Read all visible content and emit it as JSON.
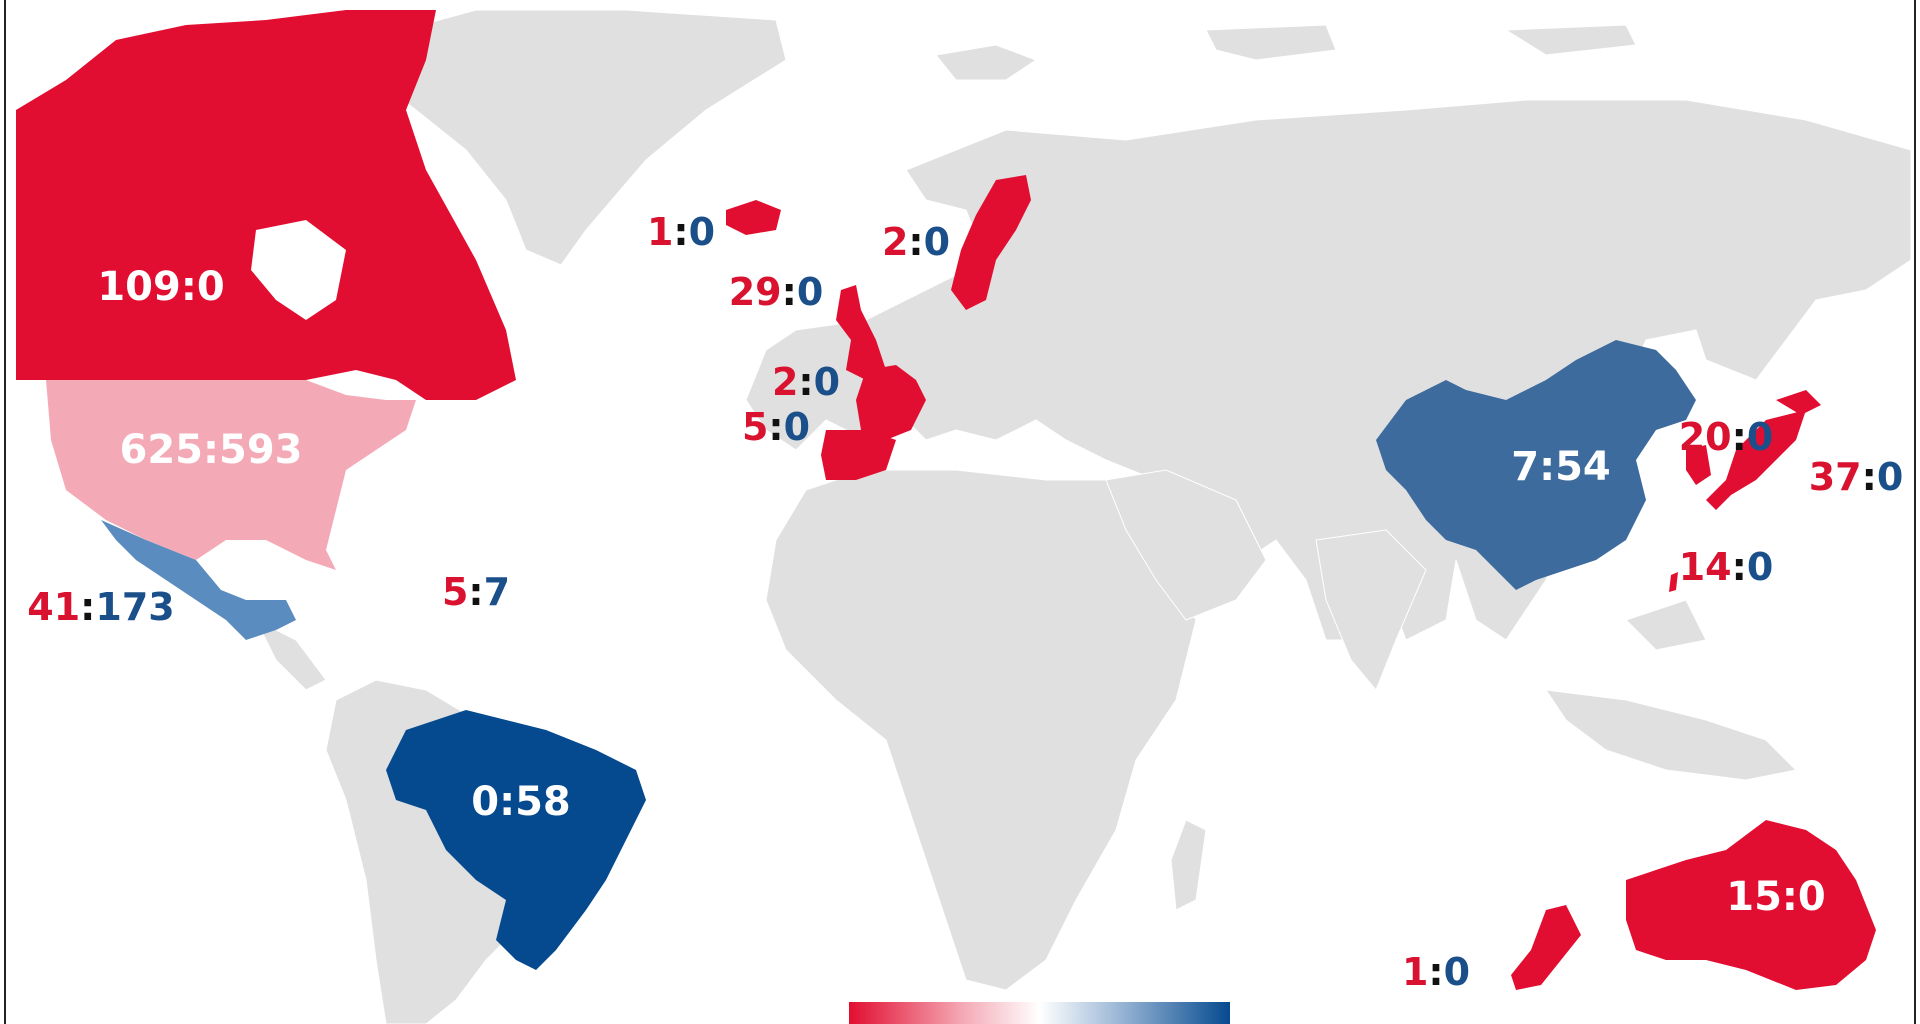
{
  "colors": {
    "land": "#e0e0e0",
    "strong_red": "#e20e31",
    "light_red": "#f4aab6",
    "mid_blue": "#5b8cc0",
    "steel_blue": "#3d6b9d",
    "dark_blue": "#054a8f",
    "label_red": "#d9122f",
    "label_blue": "#1b4f8a"
  },
  "countries": [
    {
      "name": "canada",
      "left": "109",
      "right": "0",
      "label_style": "inside"
    },
    {
      "name": "usa",
      "left": "625",
      "right": "593",
      "label_style": "inside"
    },
    {
      "name": "mexico",
      "left": "41",
      "right": "173",
      "label_style": "outside"
    },
    {
      "name": "caribbean",
      "left": "5",
      "right": "7",
      "label_style": "outside"
    },
    {
      "name": "brazil",
      "left": "0",
      "right": "58",
      "label_style": "inside"
    },
    {
      "name": "iceland",
      "left": "1",
      "right": "0",
      "label_style": "outside"
    },
    {
      "name": "uk",
      "left": "29",
      "right": "0",
      "label_style": "outside"
    },
    {
      "name": "sweden",
      "left": "2",
      "right": "0",
      "label_style": "outside"
    },
    {
      "name": "france",
      "left": "2",
      "right": "0",
      "label_style": "outside"
    },
    {
      "name": "spain",
      "left": "5",
      "right": "0",
      "label_style": "outside"
    },
    {
      "name": "china",
      "left": "7",
      "right": "54",
      "label_style": "inside"
    },
    {
      "name": "south-korea",
      "left": "20",
      "right": "0",
      "label_style": "outside"
    },
    {
      "name": "japan",
      "left": "37",
      "right": "0",
      "label_style": "outside"
    },
    {
      "name": "taiwan",
      "left": "14",
      "right": "0",
      "label_style": "outside"
    },
    {
      "name": "australia",
      "left": "15",
      "right": "0",
      "label_style": "inside"
    },
    {
      "name": "new-zealand",
      "left": "1",
      "right": "0",
      "label_style": "outside"
    }
  ],
  "legend": {
    "colors": [
      "#e20e31",
      "#f4aab6",
      "#ffffff",
      "#9fbad8",
      "#054a8f"
    ]
  }
}
